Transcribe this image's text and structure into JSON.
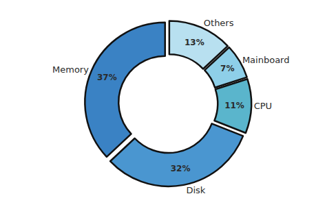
{
  "chart_data": {
    "type": "pie",
    "categories": [
      "Others",
      "Mainboard",
      "CPU",
      "Disk",
      "Memory"
    ],
    "values": [
      13,
      7,
      11,
      32,
      37
    ],
    "value_labels": [
      "13%",
      "7%",
      "11%",
      "32%",
      "37%"
    ],
    "colors": [
      "#b8e0f0",
      "#8ecfe8",
      "#5ab5cc",
      "#4a96d0",
      "#3a82c4"
    ],
    "data_labels": true
  }
}
